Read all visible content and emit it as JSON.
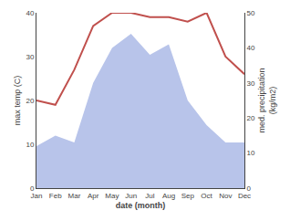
{
  "chart_data": {
    "type": "line",
    "xlabel": "date (month)",
    "ylabel": "max temp (C)",
    "y2label": "med. precipitation\n(kg/m2)",
    "categories": [
      "Jan",
      "Feb",
      "Mar",
      "Apr",
      "May",
      "Jun",
      "Jul",
      "Aug",
      "Sep",
      "Oct",
      "Nov",
      "Dec"
    ],
    "series": [
      {
        "type": "area",
        "color": "#b8c4ea",
        "axis": "y2",
        "values": [
          12,
          15,
          13,
          30,
          40,
          44,
          38,
          41,
          25,
          18,
          13,
          13
        ]
      },
      {
        "type": "line",
        "color": "#c0504d",
        "values": [
          20,
          19,
          27,
          37,
          40,
          40,
          39,
          39,
          38,
          40,
          30,
          26
        ]
      }
    ],
    "ylim": [
      0,
      40
    ],
    "yticks": [
      0,
      10,
      20,
      30,
      40
    ],
    "y2lim": [
      0,
      50
    ],
    "y2ticks": [
      0,
      10,
      20,
      30,
      40,
      50
    ],
    "grid": false
  }
}
